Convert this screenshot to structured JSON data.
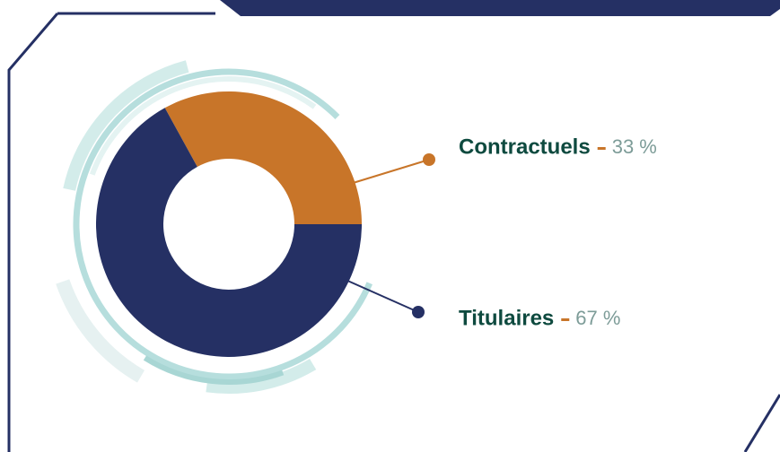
{
  "chart_data": {
    "type": "pie",
    "donut": true,
    "categories": [
      "Contractuels",
      "Titulaires"
    ],
    "values": [
      33,
      67
    ],
    "value_labels": [
      "33 %",
      "67 %"
    ],
    "colors": [
      "#c87529",
      "#253064"
    ]
  }
}
